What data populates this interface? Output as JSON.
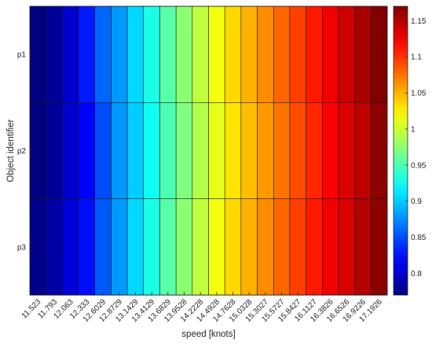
{
  "chart_data": {
    "type": "heatmap",
    "title": "",
    "xlabel": "speed [knots]",
    "ylabel": "Object identifier",
    "x_categories": [
      "11.523",
      "11.793",
      "12.063",
      "12.333",
      "12.6029",
      "12.8729",
      "13.1429",
      "13.4129",
      "13.6829",
      "13.9528",
      "14.2228",
      "14.4928",
      "14.7628",
      "15.0328",
      "15.3027",
      "15.5727",
      "15.8427",
      "16.1127",
      "16.3826",
      "16.6526",
      "16.9226",
      "17.1926"
    ],
    "y_categories": [
      "p1",
      "p2",
      "p3"
    ],
    "values": [
      [
        0.77,
        0.78,
        0.8,
        0.83,
        0.86,
        0.88,
        0.905,
        0.93,
        0.955,
        0.975,
        0.995,
        1.015,
        1.035,
        1.05,
        1.065,
        1.08,
        1.095,
        1.11,
        1.125,
        1.14,
        1.155,
        1.17
      ],
      [
        0.77,
        0.78,
        0.8,
        0.82,
        0.85,
        0.88,
        0.9,
        0.925,
        0.95,
        0.97,
        0.99,
        1.01,
        1.03,
        1.045,
        1.06,
        1.075,
        1.09,
        1.105,
        1.12,
        1.135,
        1.145,
        1.165
      ],
      [
        0.775,
        0.785,
        0.805,
        0.825,
        0.855,
        0.88,
        0.905,
        0.93,
        0.955,
        0.975,
        0.995,
        1.015,
        1.035,
        1.05,
        1.065,
        1.08,
        1.095,
        1.11,
        1.125,
        1.135,
        1.15,
        1.165
      ]
    ],
    "colorbar": {
      "range": [
        0.77,
        1.17
      ],
      "ticks": [
        "0.8",
        "0.85",
        "0.9",
        "0.95",
        "1",
        "1.05",
        "1.1",
        "1.15"
      ],
      "colormap": "jet"
    },
    "grid": false
  }
}
